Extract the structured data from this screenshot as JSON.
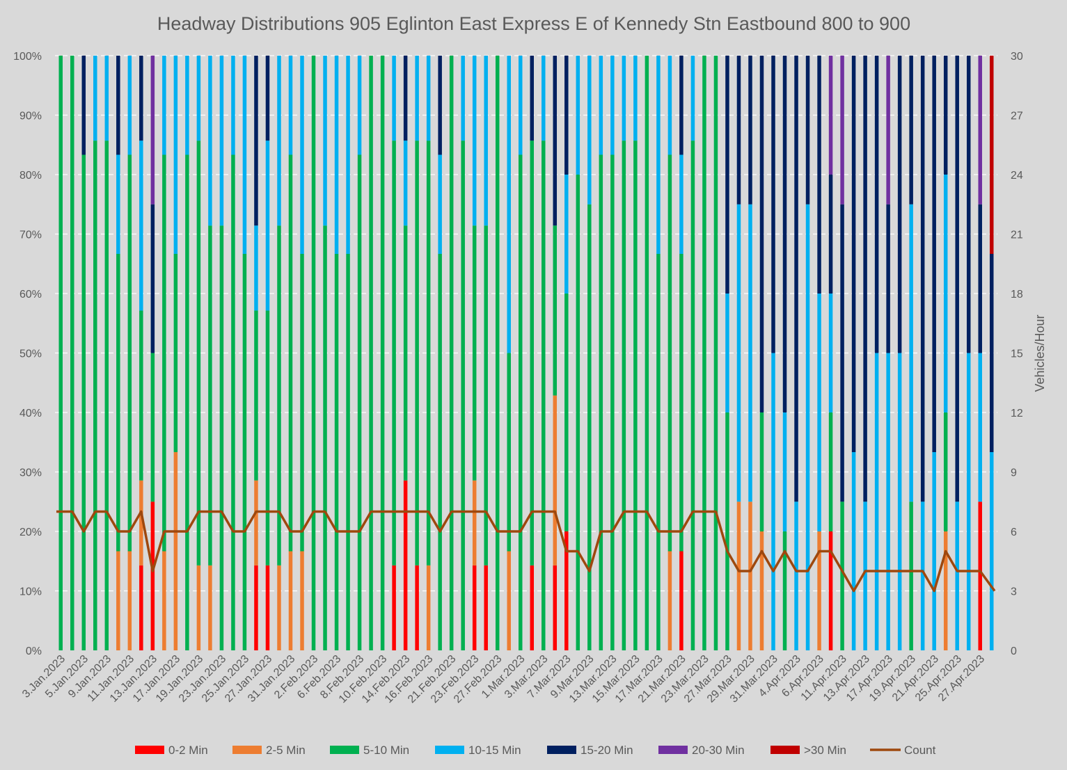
{
  "chart_data": {
    "type": "bar",
    "stacked": true,
    "percent_stacked": true,
    "title": "Headway Distributions 905 Eglinton East Express  E of Kennedy Stn Eastbound 800 to 900",
    "y_ticks": [
      "0%",
      "10%",
      "20%",
      "30%",
      "40%",
      "50%",
      "60%",
      "70%",
      "80%",
      "90%",
      "100%"
    ],
    "y2_label": "Vehicles/Hour",
    "y2_ticks": [
      "0",
      "3",
      "6",
      "9",
      "12",
      "15",
      "18",
      "21",
      "24",
      "27",
      "30"
    ],
    "ylim": [
      0,
      100
    ],
    "y2lim": [
      0,
      30
    ],
    "grid": true,
    "legend_position": "bottom",
    "bins": [
      "0-2 Min",
      "2-5 Min",
      "5-10 Min",
      "10-15 Min",
      "15-20 Min",
      "20-30 Min",
      ">30 Min"
    ],
    "colors": {
      "0-2 Min": "#ff0000",
      "2-5 Min": "#ed7d31",
      "5-10 Min": "#00b050",
      "10-15 Min": "#00b0f0",
      "15-20 Min": "#002060",
      "20-30 Min": "#7030a0",
      ">30 Min": "#c00000",
      "Count": "#9e480e"
    },
    "line_series_name": "Count",
    "categories": [
      {
        "label": "3.Jan.2023",
        "counts": [
          0,
          0,
          7,
          0,
          0,
          0,
          0
        ]
      },
      {
        "label": "",
        "counts": [
          0,
          0,
          7,
          0,
          0,
          0,
          0
        ]
      },
      {
        "label": "5.Jan.2023",
        "counts": [
          0,
          0,
          5,
          0,
          1,
          0,
          0
        ]
      },
      {
        "label": "",
        "counts": [
          0,
          0,
          6,
          1,
          0,
          0,
          0
        ]
      },
      {
        "label": "9.Jan.2023",
        "counts": [
          0,
          0,
          6,
          1,
          0,
          0,
          0
        ]
      },
      {
        "label": "",
        "counts": [
          0,
          1,
          3,
          1,
          1,
          0,
          0
        ]
      },
      {
        "label": "11.Jan.2023",
        "counts": [
          0,
          1,
          4,
          1,
          0,
          0,
          0
        ]
      },
      {
        "label": "",
        "counts": [
          1,
          1,
          2,
          2,
          1,
          0,
          0
        ]
      },
      {
        "label": "13.Jan.2023",
        "counts": [
          1,
          0,
          1,
          0,
          1,
          1,
          0
        ]
      },
      {
        "label": "",
        "counts": [
          0,
          1,
          4,
          1,
          0,
          0,
          0
        ]
      },
      {
        "label": "17.Jan.2023",
        "counts": [
          0,
          2,
          2,
          2,
          0,
          0,
          0
        ]
      },
      {
        "label": "",
        "counts": [
          0,
          0,
          5,
          1,
          0,
          0,
          0
        ]
      },
      {
        "label": "19.Jan.2023",
        "counts": [
          0,
          1,
          5,
          1,
          0,
          0,
          0
        ]
      },
      {
        "label": "",
        "counts": [
          0,
          1,
          4,
          2,
          0,
          0,
          0
        ]
      },
      {
        "label": "23.Jan.2023",
        "counts": [
          0,
          0,
          5,
          2,
          0,
          0,
          0
        ]
      },
      {
        "label": "",
        "counts": [
          0,
          0,
          5,
          1,
          0,
          0,
          0
        ]
      },
      {
        "label": "25.Jan.2023",
        "counts": [
          0,
          0,
          4,
          2,
          0,
          0,
          0
        ]
      },
      {
        "label": "",
        "counts": [
          1,
          1,
          2,
          1,
          2,
          0,
          0
        ]
      },
      {
        "label": "27.Jan.2023",
        "counts": [
          1,
          0,
          3,
          2,
          1,
          0,
          0
        ]
      },
      {
        "label": "",
        "counts": [
          0,
          1,
          4,
          2,
          0,
          0,
          0
        ]
      },
      {
        "label": "31.Jan.2023",
        "counts": [
          0,
          1,
          4,
          1,
          0,
          0,
          0
        ]
      },
      {
        "label": "",
        "counts": [
          0,
          1,
          3,
          2,
          0,
          0,
          0
        ]
      },
      {
        "label": "2.Feb.2023",
        "counts": [
          0,
          0,
          7,
          0,
          0,
          0,
          0
        ]
      },
      {
        "label": "",
        "counts": [
          0,
          0,
          5,
          2,
          0,
          0,
          0
        ]
      },
      {
        "label": "6.Feb.2023",
        "counts": [
          0,
          0,
          4,
          2,
          0,
          0,
          0
        ]
      },
      {
        "label": "",
        "counts": [
          0,
          0,
          4,
          2,
          0,
          0,
          0
        ]
      },
      {
        "label": "8.Feb.2023",
        "counts": [
          0,
          0,
          5,
          1,
          0,
          0,
          0
        ]
      },
      {
        "label": "",
        "counts": [
          0,
          0,
          7,
          0,
          0,
          0,
          0
        ]
      },
      {
        "label": "10.Feb.2023",
        "counts": [
          0,
          0,
          7,
          0,
          0,
          0,
          0
        ]
      },
      {
        "label": "",
        "counts": [
          1,
          0,
          5,
          1,
          0,
          0,
          0
        ]
      },
      {
        "label": "14.Feb.2023",
        "counts": [
          2,
          0,
          3,
          1,
          1,
          0,
          0
        ]
      },
      {
        "label": "",
        "counts": [
          1,
          0,
          5,
          1,
          0,
          0,
          0
        ]
      },
      {
        "label": "16.Feb.2023",
        "counts": [
          0,
          1,
          5,
          1,
          0,
          0,
          0
        ]
      },
      {
        "label": "",
        "counts": [
          0,
          0,
          4,
          1,
          1,
          0,
          0
        ]
      },
      {
        "label": "21.Feb.2023",
        "counts": [
          0,
          0,
          7,
          0,
          0,
          0,
          0
        ]
      },
      {
        "label": "",
        "counts": [
          0,
          0,
          6,
          1,
          0,
          0,
          0
        ]
      },
      {
        "label": "23.Feb.2023",
        "counts": [
          1,
          1,
          3,
          2,
          0,
          0,
          0
        ]
      },
      {
        "label": "",
        "counts": [
          1,
          0,
          4,
          2,
          0,
          0,
          0
        ]
      },
      {
        "label": "27.Feb.2023",
        "counts": [
          0,
          0,
          6,
          0,
          0,
          0,
          0
        ]
      },
      {
        "label": "",
        "counts": [
          0,
          1,
          2,
          3,
          0,
          0,
          0
        ]
      },
      {
        "label": "1.Mar.2023",
        "counts": [
          0,
          0,
          5,
          1,
          0,
          0,
          0
        ]
      },
      {
        "label": "",
        "counts": [
          1,
          0,
          5,
          0,
          1,
          0,
          0
        ]
      },
      {
        "label": "3.Mar.2023",
        "counts": [
          0,
          0,
          6,
          1,
          0,
          0,
          0
        ]
      },
      {
        "label": "",
        "counts": [
          1,
          2,
          2,
          0,
          2,
          0,
          0
        ]
      },
      {
        "label": "7.Mar.2023",
        "counts": [
          1,
          0,
          2,
          1,
          1,
          0,
          0
        ]
      },
      {
        "label": "",
        "counts": [
          0,
          0,
          4,
          1,
          0,
          0,
          0
        ]
      },
      {
        "label": "9.Mar.2023",
        "counts": [
          0,
          0,
          3,
          1,
          0,
          0,
          0
        ]
      },
      {
        "label": "",
        "counts": [
          0,
          0,
          5,
          1,
          0,
          0,
          0
        ]
      },
      {
        "label": "13.Mar.2023",
        "counts": [
          0,
          0,
          5,
          1,
          0,
          0,
          0
        ]
      },
      {
        "label": "",
        "counts": [
          0,
          0,
          6,
          1,
          0,
          0,
          0
        ]
      },
      {
        "label": "15.Mar.2023",
        "counts": [
          0,
          0,
          6,
          1,
          0,
          0,
          0
        ]
      },
      {
        "label": "",
        "counts": [
          0,
          0,
          7,
          0,
          0,
          0,
          0
        ]
      },
      {
        "label": "17.Mar.2023",
        "counts": [
          0,
          0,
          4,
          2,
          0,
          0,
          0
        ]
      },
      {
        "label": "",
        "counts": [
          0,
          1,
          4,
          1,
          0,
          0,
          0
        ]
      },
      {
        "label": "21.Mar.2023",
        "counts": [
          1,
          0,
          3,
          1,
          1,
          0,
          0
        ]
      },
      {
        "label": "",
        "counts": [
          0,
          0,
          6,
          1,
          0,
          0,
          0
        ]
      },
      {
        "label": "23.Mar.2023",
        "counts": [
          0,
          0,
          7,
          0,
          0,
          0,
          0
        ]
      },
      {
        "label": "",
        "counts": [
          0,
          0,
          7,
          0,
          0,
          0,
          0
        ]
      },
      {
        "label": "27.Mar.2023",
        "counts": [
          0,
          0,
          2,
          1,
          2,
          0,
          0
        ]
      },
      {
        "label": "",
        "counts": [
          0,
          1,
          0,
          2,
          1,
          0,
          0
        ]
      },
      {
        "label": "29.Mar.2023",
        "counts": [
          0,
          1,
          0,
          2,
          1,
          0,
          0
        ]
      },
      {
        "label": "",
        "counts": [
          0,
          1,
          1,
          0,
          3,
          0,
          0
        ]
      },
      {
        "label": "31.Mar.2023",
        "counts": [
          0,
          0,
          0,
          2,
          2,
          0,
          0
        ]
      },
      {
        "label": "",
        "counts": [
          0,
          0,
          1,
          1,
          3,
          0,
          0
        ]
      },
      {
        "label": "4.Apr.2023",
        "counts": [
          0,
          0,
          0,
          1,
          3,
          0,
          0
        ]
      },
      {
        "label": "",
        "counts": [
          0,
          0,
          0,
          3,
          1,
          0,
          0
        ]
      },
      {
        "label": "6.Apr.2023",
        "counts": [
          0,
          1,
          0,
          2,
          2,
          0,
          0
        ]
      },
      {
        "label": "",
        "counts": [
          1,
          0,
          1,
          1,
          1,
          1,
          0
        ]
      },
      {
        "label": "11.Apr.2023",
        "counts": [
          0,
          0,
          1,
          0,
          2,
          1,
          0
        ]
      },
      {
        "label": "",
        "counts": [
          0,
          0,
          0,
          1,
          2,
          0,
          0
        ]
      },
      {
        "label": "13.Apr.2023",
        "counts": [
          0,
          0,
          0,
          1,
          3,
          0,
          0
        ]
      },
      {
        "label": "",
        "counts": [
          0,
          0,
          0,
          2,
          2,
          0,
          0
        ]
      },
      {
        "label": "17.Apr.2023",
        "counts": [
          0,
          0,
          0,
          2,
          1,
          1,
          0
        ]
      },
      {
        "label": "",
        "counts": [
          0,
          0,
          0,
          2,
          2,
          0,
          0
        ]
      },
      {
        "label": "19.Apr.2023",
        "counts": [
          0,
          0,
          1,
          2,
          1,
          0,
          0
        ]
      },
      {
        "label": "",
        "counts": [
          0,
          0,
          0,
          1,
          3,
          0,
          0
        ]
      },
      {
        "label": "21.Apr.2023",
        "counts": [
          0,
          0,
          0,
          1,
          2,
          0,
          0
        ]
      },
      {
        "label": "",
        "counts": [
          0,
          1,
          1,
          2,
          1,
          0,
          0
        ]
      },
      {
        "label": "25.Apr.2023",
        "counts": [
          0,
          0,
          0,
          1,
          3,
          0,
          0
        ]
      },
      {
        "label": "",
        "counts": [
          0,
          0,
          0,
          2,
          2,
          0,
          0
        ]
      },
      {
        "label": "27.Apr.2023",
        "counts": [
          1,
          0,
          0,
          1,
          1,
          1,
          0
        ]
      },
      {
        "label": "",
        "counts": [
          0,
          0,
          0,
          1,
          1,
          0,
          1
        ]
      }
    ]
  }
}
